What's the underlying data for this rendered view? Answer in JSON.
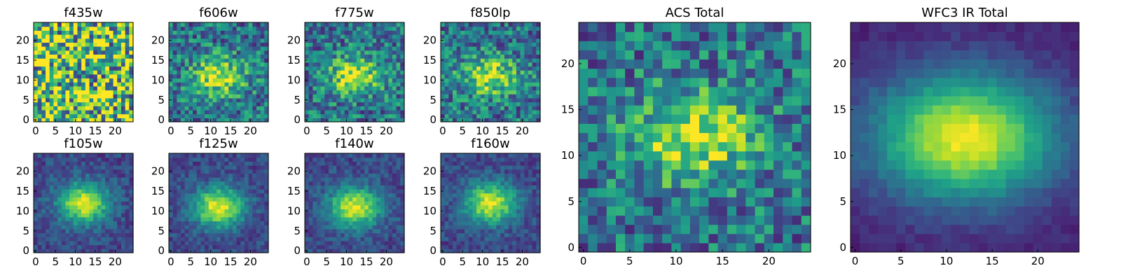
{
  "chart_data": [
    {
      "type": "heatmap",
      "title": "f435w",
      "xticks": [
        "0",
        "5",
        "10",
        "15",
        "20"
      ],
      "yticks": [
        "0",
        "5",
        "10",
        "15",
        "20"
      ],
      "xlim": [
        -0.5,
        24.5
      ],
      "ylim": [
        -0.5,
        24.5
      ],
      "grid": false,
      "pattern": "noise",
      "peak": [
        12,
        12
      ]
    },
    {
      "type": "heatmap",
      "title": "f606w",
      "xticks": [
        "0",
        "5",
        "10",
        "15",
        "20"
      ],
      "yticks": [
        "0",
        "5",
        "10",
        "15",
        "20"
      ],
      "xlim": [
        -0.5,
        24.5
      ],
      "ylim": [
        -0.5,
        24.5
      ],
      "grid": false,
      "pattern": "noisy-blob",
      "peak": [
        12,
        11
      ]
    },
    {
      "type": "heatmap",
      "title": "f775w",
      "xticks": [
        "0",
        "5",
        "10",
        "15",
        "20"
      ],
      "yticks": [
        "0",
        "5",
        "10",
        "15",
        "20"
      ],
      "xlim": [
        -0.5,
        24.5
      ],
      "ylim": [
        -0.5,
        24.5
      ],
      "grid": false,
      "pattern": "noisy-blob",
      "peak": [
        12,
        11
      ]
    },
    {
      "type": "heatmap",
      "title": "f850lp",
      "xticks": [
        "0",
        "5",
        "10",
        "15",
        "20"
      ],
      "yticks": [
        "0",
        "5",
        "10",
        "15",
        "20"
      ],
      "xlim": [
        -0.5,
        24.5
      ],
      "ylim": [
        -0.5,
        24.5
      ],
      "grid": false,
      "pattern": "noisy-blob",
      "peak": [
        12,
        11
      ]
    },
    {
      "type": "heatmap",
      "title": "f105w",
      "xticks": [
        "0",
        "5",
        "10",
        "15",
        "20"
      ],
      "yticks": [
        "0",
        "5",
        "10",
        "15",
        "20"
      ],
      "xlim": [
        -0.5,
        24.5
      ],
      "ylim": [
        -0.5,
        24.5
      ],
      "grid": false,
      "pattern": "blob",
      "peak": [
        12,
        12
      ]
    },
    {
      "type": "heatmap",
      "title": "f125w",
      "xticks": [
        "0",
        "5",
        "10",
        "15",
        "20"
      ],
      "yticks": [
        "0",
        "5",
        "10",
        "15",
        "20"
      ],
      "xlim": [
        -0.5,
        24.5
      ],
      "ylim": [
        -0.5,
        24.5
      ],
      "grid": false,
      "pattern": "blob",
      "peak": [
        12,
        11
      ]
    },
    {
      "type": "heatmap",
      "title": "f140w",
      "xticks": [
        "0",
        "5",
        "10",
        "15",
        "20"
      ],
      "yticks": [
        "0",
        "5",
        "10",
        "15",
        "20"
      ],
      "xlim": [
        -0.5,
        24.5
      ],
      "ylim": [
        -0.5,
        24.5
      ],
      "grid": false,
      "pattern": "blob",
      "peak": [
        12,
        11
      ]
    },
    {
      "type": "heatmap",
      "title": "f160w",
      "xticks": [
        "0",
        "5",
        "10",
        "15",
        "20"
      ],
      "yticks": [
        "0",
        "5",
        "10",
        "15",
        "20"
      ],
      "xlim": [
        -0.5,
        24.5
      ],
      "ylim": [
        -0.5,
        24.5
      ],
      "grid": false,
      "pattern": "blob",
      "peak": [
        12,
        12
      ]
    },
    {
      "type": "heatmap",
      "title": "ACS Total",
      "xticks": [
        "0",
        "5",
        "10",
        "15",
        "20"
      ],
      "yticks": [
        "0",
        "5",
        "10",
        "15",
        "20"
      ],
      "xlim": [
        -0.5,
        24.5
      ],
      "ylim": [
        -0.5,
        24.5
      ],
      "grid": false,
      "pattern": "noisy-blob",
      "peak": [
        12,
        12
      ]
    },
    {
      "type": "heatmap",
      "title": "WFC3 IR Total",
      "xticks": [
        "0",
        "5",
        "10",
        "15",
        "20"
      ],
      "yticks": [
        "0",
        "5",
        "10",
        "15",
        "20"
      ],
      "xlim": [
        -0.5,
        24.5
      ],
      "ylim": [
        -0.5,
        24.5
      ],
      "grid": false,
      "pattern": "smooth-blob",
      "peak": [
        12,
        12
      ]
    }
  ],
  "colormap": [
    "#440154",
    "#482878",
    "#3e4989",
    "#31688e",
    "#26828e",
    "#1f9e89",
    "#35b779",
    "#6ece58",
    "#b5de2b",
    "#fde725"
  ]
}
